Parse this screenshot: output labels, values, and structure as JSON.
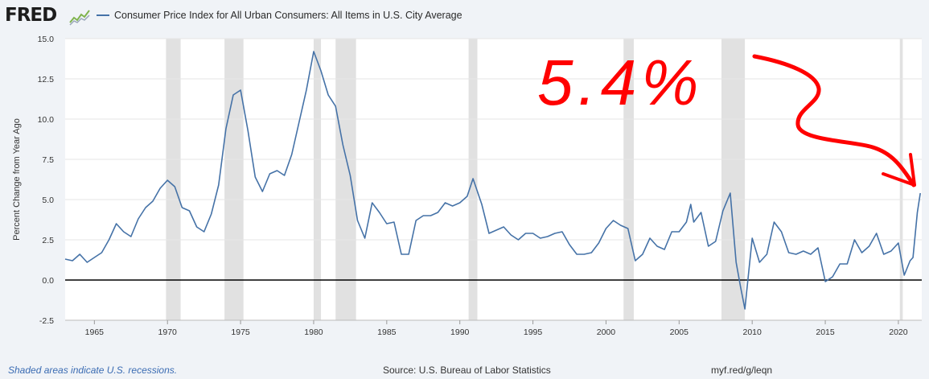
{
  "header": {
    "logo_text": "FRED",
    "logo_icon": "trend-line-icon",
    "legend_label": "Consumer Price Index for All Urban Consumers: All Items in U.S. City Average",
    "series_color": "#4572a7"
  },
  "footer": {
    "footnote": "Shaded areas indicate U.S. recessions.",
    "source": "Source: U.S. Bureau of Labor Statistics",
    "url": "myf.red/g/leqn"
  },
  "annotation": {
    "text": "5.4%",
    "color": "#ff0000"
  },
  "chart_data": {
    "type": "line",
    "title": "",
    "xlabel": "",
    "ylabel": "Percent Change from Year Ago",
    "xlim": [
      1963.0,
      2021.6
    ],
    "ylim": [
      -2.5,
      15.0
    ],
    "x_ticks": [
      "1965",
      "1970",
      "1975",
      "1980",
      "1985",
      "1990",
      "1995",
      "2000",
      "2005",
      "2010",
      "2015",
      "2020"
    ],
    "y_ticks": [
      "15.0",
      "12.5",
      "10.0",
      "7.5",
      "5.0",
      "2.5",
      "0.0",
      "-2.5"
    ],
    "grid": true,
    "zero_line": true,
    "recession_color": "#e1e1e1",
    "recessions": [
      [
        1969.9,
        1970.9
      ],
      [
        1973.9,
        1975.2
      ],
      [
        1980.0,
        1980.5
      ],
      [
        1981.5,
        1982.9
      ],
      [
        1990.6,
        1991.2
      ],
      [
        2001.2,
        2001.9
      ],
      [
        2007.9,
        2009.5
      ],
      [
        2020.1,
        2020.3
      ]
    ],
    "series": [
      {
        "name": "Consumer Price Index for All Urban Consumers: All Items in U.S. City Average",
        "x": [
          1963.0,
          1963.5,
          1964.0,
          1964.5,
          1965.0,
          1965.5,
          1966.0,
          1966.5,
          1967.0,
          1967.5,
          1968.0,
          1968.5,
          1969.0,
          1969.5,
          1970.0,
          1970.5,
          1971.0,
          1971.5,
          1972.0,
          1972.5,
          1973.0,
          1973.5,
          1974.0,
          1974.5,
          1975.0,
          1975.5,
          1976.0,
          1976.5,
          1977.0,
          1977.5,
          1978.0,
          1978.5,
          1979.0,
          1979.5,
          1980.0,
          1980.5,
          1981.0,
          1981.5,
          1982.0,
          1982.5,
          1983.0,
          1983.5,
          1984.0,
          1984.5,
          1985.0,
          1985.5,
          1986.0,
          1986.5,
          1987.0,
          1987.5,
          1988.0,
          1988.5,
          1989.0,
          1989.5,
          1990.0,
          1990.5,
          1990.9,
          1991.5,
          1992.0,
          1992.5,
          1993.0,
          1993.5,
          1994.0,
          1994.5,
          1995.0,
          1995.5,
          1996.0,
          1996.5,
          1997.0,
          1997.5,
          1998.0,
          1998.5,
          1999.0,
          1999.5,
          2000.0,
          2000.5,
          2001.0,
          2001.5,
          2002.0,
          2002.5,
          2003.0,
          2003.5,
          2004.0,
          2004.5,
          2005.0,
          2005.5,
          2005.8,
          2006.0,
          2006.5,
          2007.0,
          2007.5,
          2008.0,
          2008.5,
          2008.9,
          2009.2,
          2009.5,
          2010.0,
          2010.5,
          2011.0,
          2011.5,
          2012.0,
          2012.5,
          2013.0,
          2013.5,
          2014.0,
          2014.5,
          2015.0,
          2015.5,
          2016.0,
          2016.5,
          2017.0,
          2017.5,
          2018.0,
          2018.5,
          2019.0,
          2019.5,
          2020.0,
          2020.4,
          2020.8,
          2021.0,
          2021.3,
          2021.5
        ],
        "values": [
          1.3,
          1.2,
          1.6,
          1.1,
          1.4,
          1.7,
          2.5,
          3.5,
          3.0,
          2.7,
          3.8,
          4.5,
          4.9,
          5.7,
          6.2,
          5.8,
          4.5,
          4.3,
          3.3,
          3.0,
          4.1,
          5.9,
          9.4,
          11.5,
          11.8,
          9.3,
          6.4,
          5.5,
          6.6,
          6.8,
          6.5,
          7.8,
          9.8,
          11.8,
          14.2,
          13.0,
          11.5,
          10.8,
          8.4,
          6.5,
          3.7,
          2.6,
          4.8,
          4.2,
          3.5,
          3.6,
          1.6,
          1.6,
          3.7,
          4.0,
          4.0,
          4.2,
          4.8,
          4.6,
          4.8,
          5.2,
          6.3,
          4.7,
          2.9,
          3.1,
          3.3,
          2.8,
          2.5,
          2.9,
          2.9,
          2.6,
          2.7,
          2.9,
          3.0,
          2.2,
          1.6,
          1.6,
          1.7,
          2.3,
          3.2,
          3.7,
          3.4,
          3.2,
          1.2,
          1.6,
          2.6,
          2.1,
          1.9,
          3.0,
          3.0,
          3.6,
          4.7,
          3.6,
          4.2,
          2.1,
          2.4,
          4.3,
          5.4,
          1.1,
          -0.4,
          -1.8,
          2.6,
          1.1,
          1.6,
          3.6,
          3.0,
          1.7,
          1.6,
          1.8,
          1.6,
          2.0,
          -0.1,
          0.2,
          1.0,
          1.0,
          2.5,
          1.7,
          2.1,
          2.9,
          1.6,
          1.8,
          2.3,
          0.3,
          1.2,
          1.4,
          4.2,
          5.4
        ]
      }
    ]
  }
}
